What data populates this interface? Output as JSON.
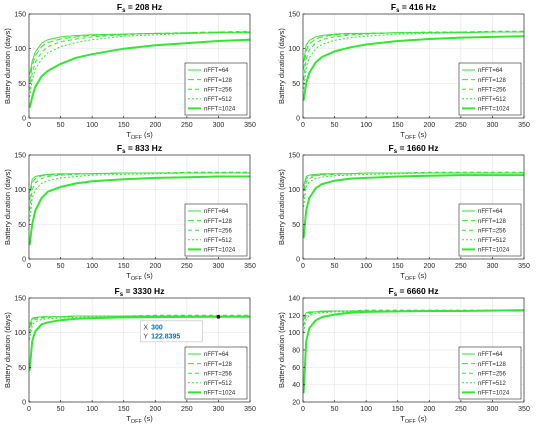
{
  "legend_labels": [
    "nFFT=64",
    "nFFT=128",
    "nFFT=256",
    "nFFT=512",
    "nFFT=1024"
  ],
  "axis": {
    "ylabel": "Battery duration (days)",
    "xlabel_main": "T",
    "xlabel_sub": "OFF",
    "xlabel_unit": " (s)"
  },
  "colors": {
    "series": "#33e633",
    "axis": "#262626",
    "grid": "#e6e6e6",
    "datatip": "#0072bd"
  },
  "chart_data": [
    {
      "type": "line",
      "title_main": "F",
      "title_sub": "s",
      "title_rest": " = 208 Hz",
      "xlim": [
        0,
        350
      ],
      "ylim": [
        0,
        150
      ],
      "yticks": [
        0,
        50,
        100,
        150
      ],
      "xticks": [
        0,
        50,
        100,
        150,
        200,
        250,
        300,
        350
      ],
      "legend": "bottom-right",
      "series": [
        {
          "name": "nFFT=64",
          "x": [
            1,
            5,
            10,
            20,
            30,
            50,
            75,
            100,
            150,
            200,
            250,
            300,
            350
          ],
          "y": [
            62,
            82,
            95,
            108,
            113,
            117,
            119,
            120,
            121,
            122,
            122,
            123,
            123
          ]
        },
        {
          "name": "nFFT=128",
          "x": [
            1,
            5,
            10,
            20,
            30,
            50,
            75,
            100,
            150,
            200,
            250,
            300,
            350
          ],
          "y": [
            52,
            75,
            90,
            103,
            109,
            114,
            117,
            119,
            121,
            122,
            123,
            124,
            124
          ]
        },
        {
          "name": "nFFT=256",
          "x": [
            1,
            5,
            10,
            20,
            30,
            50,
            75,
            100,
            150,
            200,
            250,
            300,
            350
          ],
          "y": [
            40,
            65,
            80,
            95,
            103,
            110,
            114,
            117,
            120,
            122,
            123,
            124,
            125
          ]
        },
        {
          "name": "nFFT=512",
          "x": [
            1,
            5,
            10,
            20,
            30,
            50,
            75,
            100,
            150,
            200,
            250,
            300,
            350
          ],
          "y": [
            30,
            55,
            70,
            85,
            94,
            103,
            109,
            113,
            118,
            120,
            122,
            123,
            124
          ]
        },
        {
          "name": "nFFT=1024",
          "x": [
            1,
            5,
            10,
            20,
            30,
            50,
            75,
            100,
            150,
            200,
            250,
            300,
            350
          ],
          "y": [
            15,
            30,
            45,
            60,
            68,
            78,
            87,
            92,
            100,
            105,
            108,
            111,
            113
          ]
        }
      ]
    },
    {
      "type": "line",
      "title_main": "F",
      "title_sub": "s",
      "title_rest": " = 416 Hz",
      "xlim": [
        0,
        350
      ],
      "ylim": [
        0,
        150
      ],
      "yticks": [
        0,
        50,
        100,
        150
      ],
      "xticks": [
        0,
        50,
        100,
        150,
        200,
        250,
        300,
        350
      ],
      "legend": "bottom-right",
      "series": [
        {
          "name": "nFFT=64",
          "x": [
            1,
            5,
            10,
            20,
            30,
            50,
            75,
            100,
            150,
            200,
            250,
            300,
            350
          ],
          "y": [
            80,
            105,
            112,
            117,
            119,
            121,
            122,
            122,
            123,
            123,
            123,
            124,
            124
          ]
        },
        {
          "name": "nFFT=128",
          "x": [
            1,
            5,
            10,
            20,
            30,
            50,
            75,
            100,
            150,
            200,
            250,
            300,
            350
          ],
          "y": [
            70,
            97,
            107,
            114,
            117,
            120,
            121,
            122,
            123,
            123,
            124,
            124,
            124
          ]
        },
        {
          "name": "nFFT=256",
          "x": [
            1,
            5,
            10,
            20,
            30,
            50,
            75,
            100,
            150,
            200,
            250,
            300,
            350
          ],
          "y": [
            55,
            85,
            98,
            108,
            113,
            117,
            120,
            121,
            123,
            124,
            124,
            125,
            125
          ]
        },
        {
          "name": "nFFT=512",
          "x": [
            1,
            5,
            10,
            20,
            30,
            50,
            75,
            100,
            150,
            200,
            250,
            300,
            350
          ],
          "y": [
            42,
            72,
            87,
            100,
            106,
            112,
            116,
            118,
            121,
            122,
            123,
            124,
            124
          ]
        },
        {
          "name": "nFFT=1024",
          "x": [
            1,
            5,
            10,
            20,
            30,
            50,
            75,
            100,
            150,
            200,
            250,
            300,
            350
          ],
          "y": [
            25,
            50,
            65,
            80,
            88,
            96,
            102,
            106,
            111,
            114,
            116,
            117,
            118
          ]
        }
      ]
    },
    {
      "type": "line",
      "title_main": "F",
      "title_sub": "s",
      "title_rest": " = 833 Hz",
      "xlim": [
        0,
        350
      ],
      "ylim": [
        0,
        150
      ],
      "yticks": [
        0,
        50,
        100,
        150
      ],
      "xticks": [
        0,
        50,
        100,
        150,
        200,
        250,
        300,
        350
      ],
      "legend": "bottom-right",
      "series": [
        {
          "name": "nFFT=64",
          "x": [
            1,
            5,
            10,
            20,
            30,
            50,
            75,
            100,
            150,
            200,
            250,
            300,
            350
          ],
          "y": [
            95,
            115,
            119,
            121,
            122,
            123,
            123,
            123,
            124,
            124,
            124,
            124,
            124
          ]
        },
        {
          "name": "nFFT=128",
          "x": [
            1,
            5,
            10,
            20,
            30,
            50,
            75,
            100,
            150,
            200,
            250,
            300,
            350
          ],
          "y": [
            85,
            110,
            116,
            120,
            121,
            122,
            123,
            123,
            124,
            124,
            124,
            124,
            124
          ]
        },
        {
          "name": "nFFT=256",
          "x": [
            1,
            5,
            10,
            20,
            30,
            50,
            75,
            100,
            150,
            200,
            250,
            300,
            350
          ],
          "y": [
            70,
            100,
            110,
            116,
            119,
            121,
            122,
            123,
            124,
            124,
            125,
            125,
            125
          ]
        },
        {
          "name": "nFFT=512",
          "x": [
            1,
            5,
            10,
            20,
            30,
            50,
            75,
            100,
            150,
            200,
            250,
            300,
            350
          ],
          "y": [
            55,
            88,
            100,
            109,
            113,
            117,
            119,
            121,
            122,
            123,
            124,
            124,
            124
          ]
        },
        {
          "name": "nFFT=1024",
          "x": [
            1,
            5,
            10,
            20,
            30,
            50,
            75,
            100,
            150,
            200,
            250,
            300,
            350
          ],
          "y": [
            20,
            50,
            70,
            88,
            97,
            104,
            109,
            112,
            115,
            117,
            118,
            119,
            119
          ]
        }
      ]
    },
    {
      "type": "line",
      "title_main": "F",
      "title_sub": "s",
      "title_rest": " = 1660 Hz",
      "xlim": [
        0,
        350
      ],
      "ylim": [
        0,
        150
      ],
      "yticks": [
        0,
        50,
        100,
        150
      ],
      "xticks": [
        0,
        50,
        100,
        150,
        200,
        250,
        300,
        350
      ],
      "legend": "bottom-right",
      "series": [
        {
          "name": "nFFT=64",
          "x": [
            1,
            5,
            10,
            20,
            30,
            50,
            75,
            100,
            150,
            200,
            250,
            300,
            350
          ],
          "y": [
            105,
            119,
            121,
            122,
            123,
            123,
            123,
            124,
            124,
            124,
            124,
            124,
            124
          ]
        },
        {
          "name": "nFFT=128",
          "x": [
            1,
            5,
            10,
            20,
            30,
            50,
            75,
            100,
            150,
            200,
            250,
            300,
            350
          ],
          "y": [
            98,
            116,
            119,
            121,
            122,
            123,
            123,
            124,
            124,
            124,
            124,
            124,
            124
          ]
        },
        {
          "name": "nFFT=256",
          "x": [
            1,
            5,
            10,
            20,
            30,
            50,
            75,
            100,
            150,
            200,
            250,
            300,
            350
          ],
          "y": [
            88,
            111,
            116,
            120,
            121,
            122,
            123,
            124,
            124,
            125,
            125,
            125,
            125
          ]
        },
        {
          "name": "nFFT=512",
          "x": [
            1,
            5,
            10,
            20,
            30,
            50,
            75,
            100,
            150,
            200,
            250,
            300,
            350
          ],
          "y": [
            75,
            104,
            111,
            116,
            118,
            120,
            121,
            122,
            123,
            124,
            124,
            124,
            124
          ]
        },
        {
          "name": "nFFT=1024",
          "x": [
            1,
            5,
            10,
            20,
            30,
            50,
            75,
            100,
            150,
            200,
            250,
            300,
            350
          ],
          "y": [
            30,
            70,
            88,
            102,
            108,
            113,
            116,
            117,
            119,
            120,
            121,
            121,
            121
          ]
        }
      ]
    },
    {
      "type": "line",
      "title_main": "F",
      "title_sub": "s",
      "title_rest": " = 3330 Hz",
      "xlim": [
        0,
        350
      ],
      "ylim": [
        0,
        150
      ],
      "yticks": [
        0,
        50,
        100,
        150
      ],
      "xticks": [
        0,
        50,
        100,
        150,
        200,
        250,
        300,
        350
      ],
      "legend": "bottom-right",
      "datatip": {
        "x_label": "X",
        "x_value": "300",
        "y_label": "Y",
        "y_value": "122.8395",
        "x": 300,
        "y": 122.8395
      },
      "series": [
        {
          "name": "nFFT=64",
          "x": [
            1,
            5,
            10,
            20,
            30,
            50,
            75,
            100,
            150,
            200,
            250,
            300,
            350
          ],
          "y": [
            112,
            121,
            122,
            123,
            123,
            123,
            124,
            124,
            124,
            124,
            124,
            124,
            124
          ]
        },
        {
          "name": "nFFT=128",
          "x": [
            1,
            5,
            10,
            20,
            30,
            50,
            75,
            100,
            150,
            200,
            250,
            300,
            350
          ],
          "y": [
            107,
            119,
            121,
            122,
            123,
            123,
            124,
            124,
            124,
            124,
            124,
            124,
            124
          ]
        },
        {
          "name": "nFFT=256",
          "x": [
            1,
            5,
            10,
            20,
            30,
            50,
            75,
            100,
            150,
            200,
            250,
            300,
            350
          ],
          "y": [
            100,
            116,
            119,
            121,
            122,
            123,
            124,
            124,
            124,
            125,
            125,
            125,
            125
          ]
        },
        {
          "name": "nFFT=512",
          "x": [
            1,
            5,
            10,
            20,
            30,
            50,
            75,
            100,
            150,
            200,
            250,
            300,
            350
          ],
          "y": [
            90,
            111,
            116,
            119,
            120,
            121,
            122,
            123,
            123,
            124,
            124,
            124,
            124
          ]
        },
        {
          "name": "nFFT=1024",
          "x": [
            1,
            5,
            10,
            20,
            30,
            50,
            75,
            100,
            150,
            200,
            250,
            300,
            350
          ],
          "y": [
            45,
            88,
            102,
            112,
            115,
            118,
            120,
            121,
            122,
            122.5,
            122.7,
            122.84,
            123
          ]
        }
      ]
    },
    {
      "type": "line",
      "title_main": "F",
      "title_sub": "s",
      "title_rest": " = 6660 Hz",
      "xlim": [
        0,
        350
      ],
      "ylim": [
        20,
        140
      ],
      "yticks": [
        20,
        40,
        60,
        80,
        100,
        120,
        140
      ],
      "xticks": [
        0,
        50,
        100,
        150,
        200,
        250,
        300,
        350
      ],
      "legend": "bottom-right",
      "series": [
        {
          "name": "nFFT=64",
          "x": [
            1,
            5,
            10,
            20,
            30,
            50,
            75,
            100,
            150,
            200,
            250,
            300,
            350
          ],
          "y": [
            118,
            123,
            124,
            124,
            125,
            125,
            125,
            125,
            125,
            125,
            125,
            125,
            125
          ]
        },
        {
          "name": "nFFT=128",
          "x": [
            1,
            5,
            10,
            20,
            30,
            50,
            75,
            100,
            150,
            200,
            250,
            300,
            350
          ],
          "y": [
            114,
            122,
            123,
            124,
            124,
            125,
            125,
            125,
            125,
            125,
            125,
            125,
            125
          ]
        },
        {
          "name": "nFFT=256",
          "x": [
            1,
            5,
            10,
            20,
            30,
            50,
            75,
            100,
            150,
            200,
            250,
            300,
            350
          ],
          "y": [
            108,
            120,
            122,
            124,
            124,
            125,
            125,
            126,
            126,
            126,
            126,
            126,
            126
          ]
        },
        {
          "name": "nFFT=512",
          "x": [
            1,
            5,
            10,
            20,
            30,
            50,
            75,
            100,
            150,
            200,
            250,
            300,
            350
          ],
          "y": [
            100,
            116,
            120,
            122,
            123,
            124,
            124,
            125,
            125,
            125,
            125,
            126,
            126
          ]
        },
        {
          "name": "nFFT=1024",
          "x": [
            1,
            5,
            10,
            20,
            30,
            50,
            75,
            100,
            150,
            200,
            250,
            300,
            350
          ],
          "y": [
            30,
            90,
            105,
            114,
            118,
            121,
            123,
            124,
            124.5,
            125,
            125,
            125.5,
            126
          ]
        }
      ]
    }
  ]
}
